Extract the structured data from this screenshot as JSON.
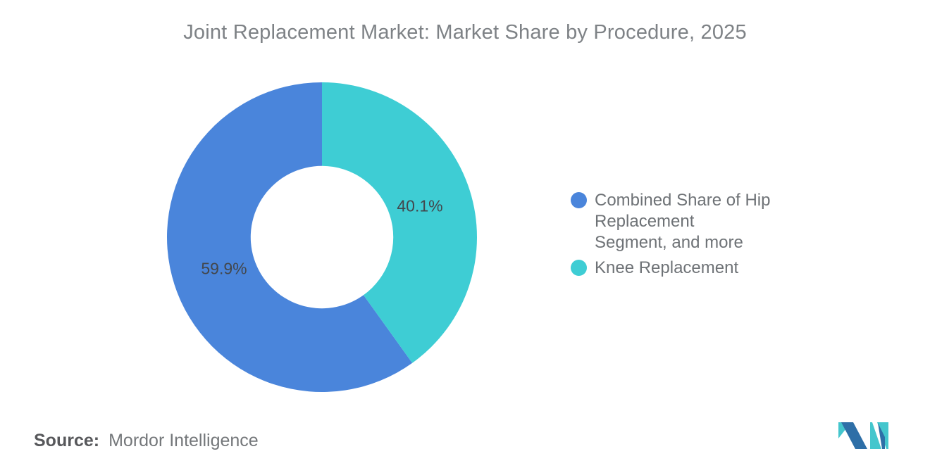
{
  "title": "Joint Replacement Market: Market Share by Procedure, 2025",
  "chart_data": {
    "type": "pie",
    "subtype": "donut",
    "title": "Joint Replacement Market: Market Share by Procedure, 2025",
    "slices": [
      {
        "label": "Combined Share of Hip Replacement Segment, and more",
        "value": 59.9,
        "data_label": "59.9%",
        "color": "#4a85db"
      },
      {
        "label": "Knee Replacement",
        "value": 40.1,
        "data_label": "40.1%",
        "color": "#3ecdd4"
      }
    ],
    "start_angle_deg": 0,
    "direction": "counterclockwise-from-top",
    "inner_radius_ratio": 0.46,
    "legend_position": "right",
    "grid": false
  },
  "legend": {
    "items": [
      {
        "lines": [
          "Combined Share of Hip Replacement",
          "Segment, and more"
        ]
      },
      {
        "lines": [
          "Knee Replacement"
        ]
      }
    ]
  },
  "source": {
    "label": "Source:",
    "text": "Mordor Intelligence"
  },
  "logo": {
    "name": "mordor-intelligence-logo",
    "blue": "#2e6fa7",
    "teal": "#44c6cd"
  }
}
